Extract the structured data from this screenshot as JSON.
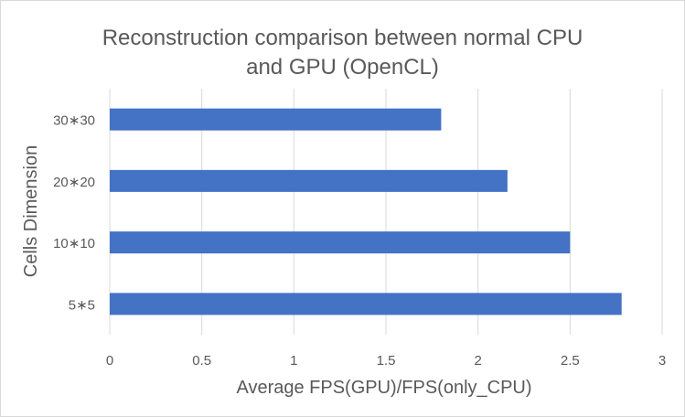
{
  "chart_data": {
    "type": "bar",
    "orientation": "horizontal",
    "title_lines": [
      "Reconstruction comparison between normal CPU",
      "and GPU (OpenCL)"
    ],
    "xlabel": "Average FPS(GPU)/FPS(only_CPU)",
    "ylabel": "Cells Dimension",
    "categories": [
      "5∗5",
      "10∗10",
      "20∗20",
      "30∗30"
    ],
    "values": [
      2.78,
      2.5,
      2.16,
      1.8
    ],
    "xlim": [
      0,
      3
    ],
    "xticks": [
      "0",
      "0.5",
      "1",
      "1.5",
      "2",
      "2.5",
      "3"
    ],
    "grid": "vertical",
    "legend": "none",
    "bar_color": "#4472c4",
    "grid_color": "#d9d9d9"
  }
}
